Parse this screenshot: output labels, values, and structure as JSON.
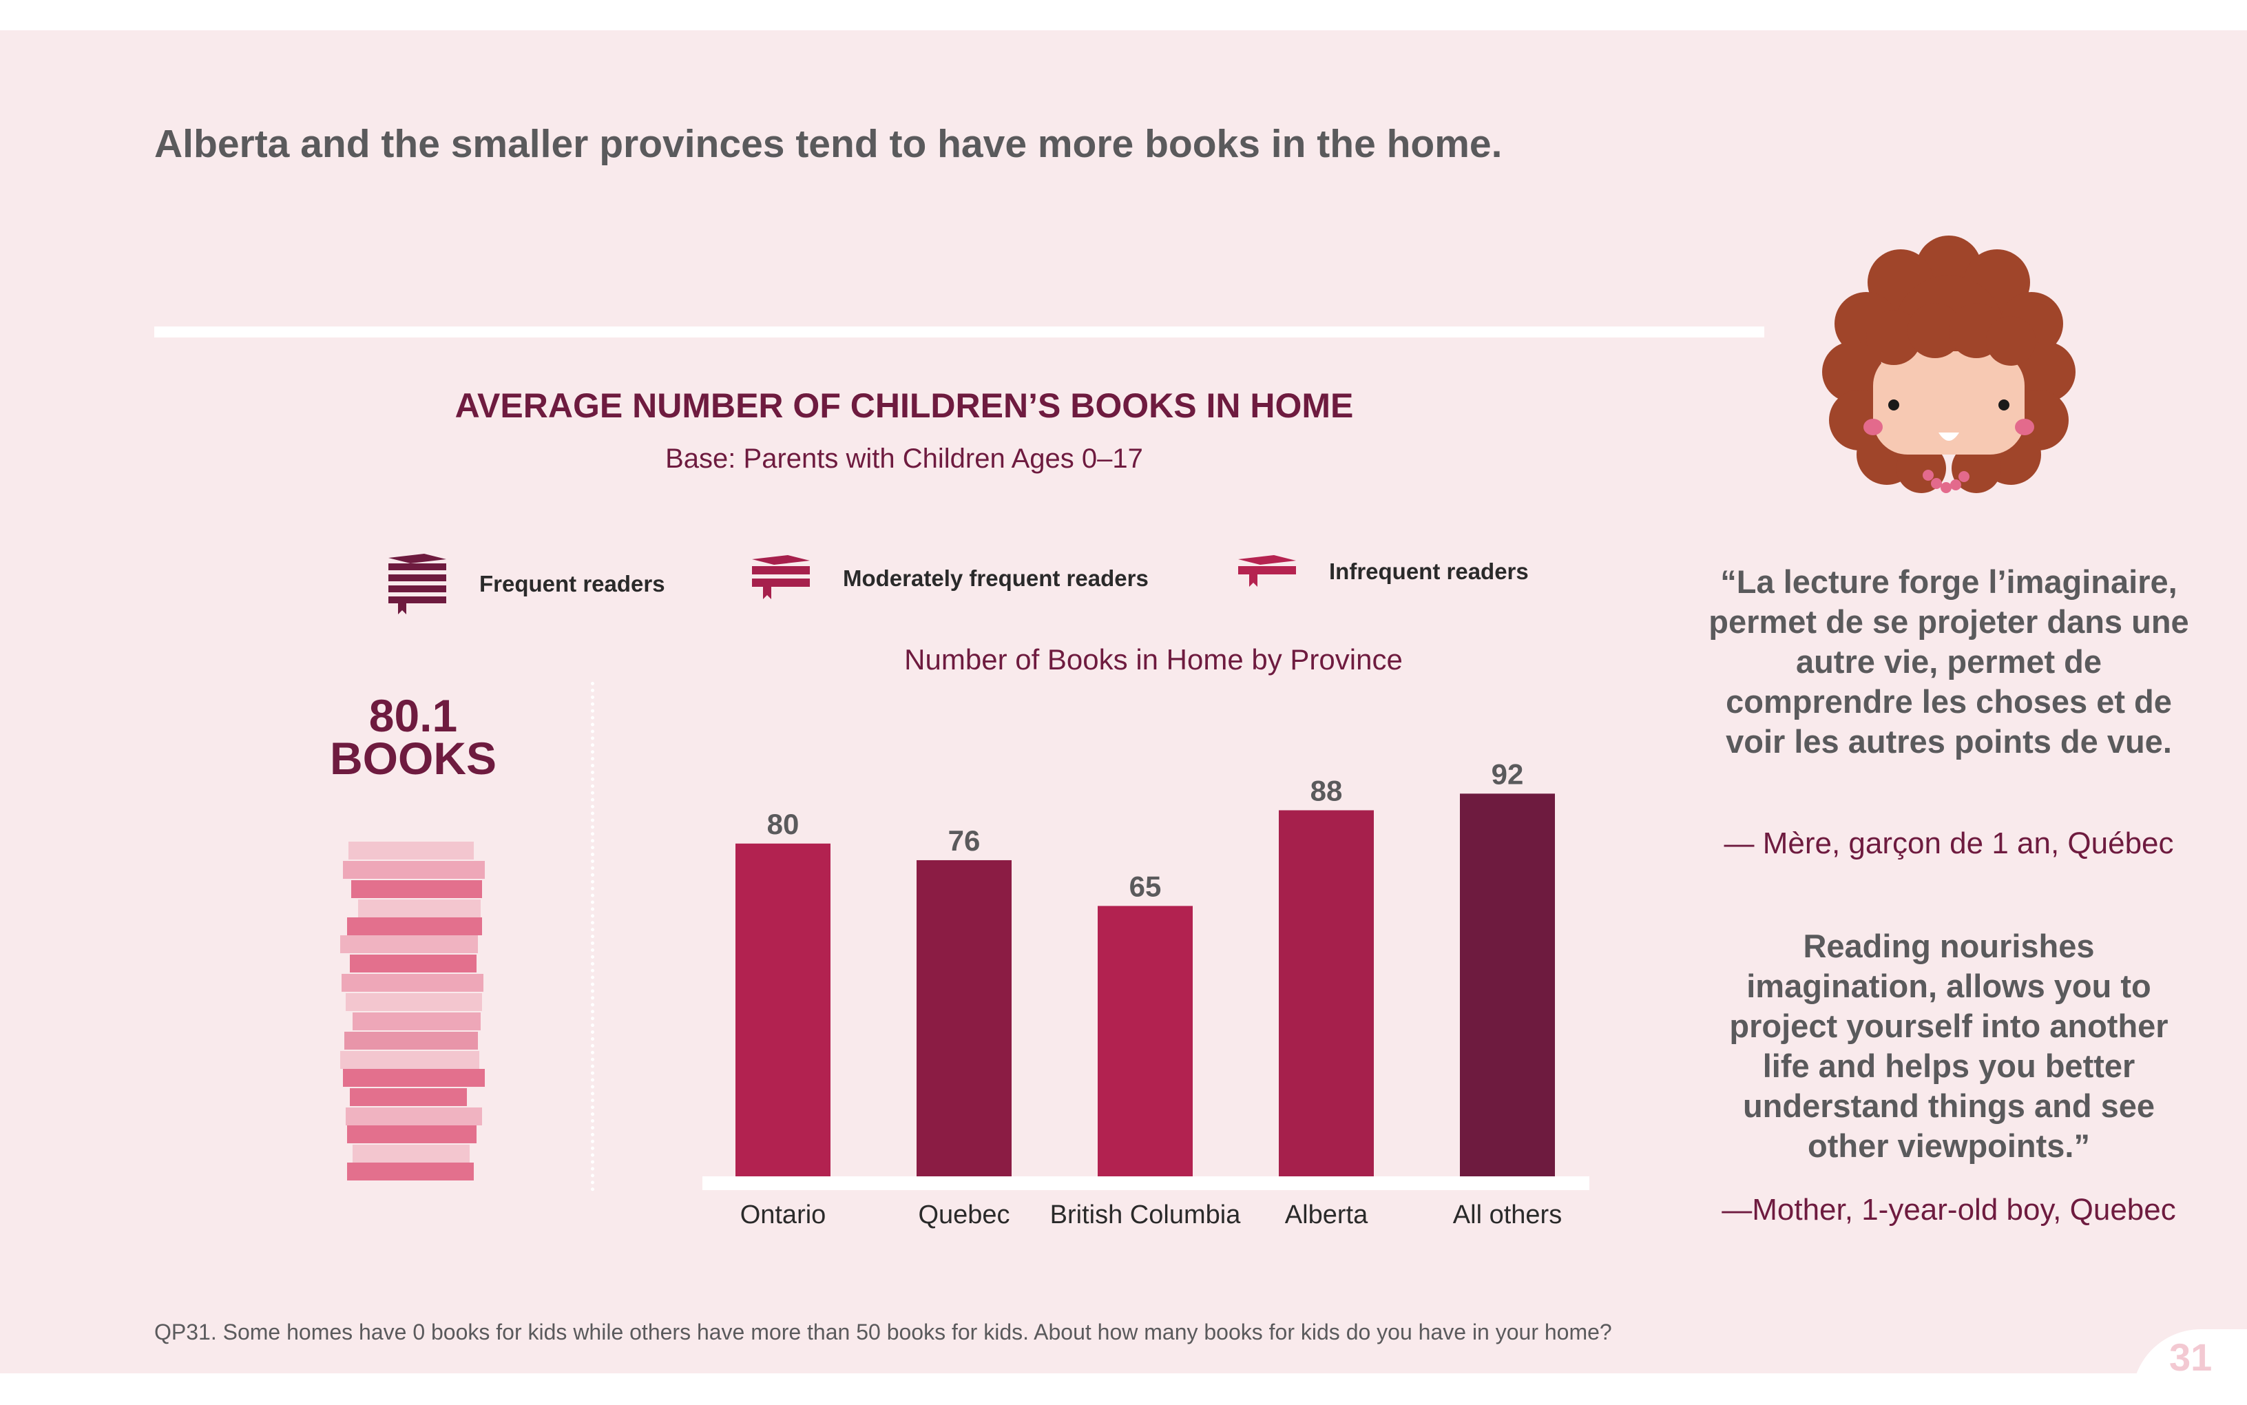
{
  "headline": "Alberta and the smaller provinces tend to have more books in the home.",
  "chart_title": "AVERAGE NUMBER OF CHILDREN’S BOOKS IN HOME",
  "chart_subtitle": "Base: Parents with Children Ages 0–17",
  "legend": [
    {
      "label": "Frequent readers",
      "icon": "book-stack-icon",
      "color": "#6e1b3f"
    },
    {
      "label": "Moderately frequent readers",
      "icon": "book-pair-icon",
      "color": "#a6204c"
    },
    {
      "label": "Infrequent readers",
      "icon": "book-single-icon",
      "color": "#b52350"
    }
  ],
  "overall": {
    "value": "80.1",
    "unit": "BOOKS"
  },
  "colors": {
    "background": "#f9eaec",
    "frequent": "#6e1b3f",
    "moderate": "#8b1c44",
    "infrequent": "#b22250",
    "text_dark": "#5a5a5c"
  },
  "chart_data": {
    "type": "bar",
    "title": "Number of Books in Home by Province",
    "categories": [
      "Ontario",
      "Quebec",
      "British Columbia",
      "Alberta",
      "All others"
    ],
    "values": [
      80,
      76,
      65,
      88,
      92
    ],
    "bar_colors": [
      "#b22250",
      "#8b1c44",
      "#b22250",
      "#a6204c",
      "#6e1b3f"
    ],
    "xlabel": "",
    "ylabel": "",
    "ylim": [
      0,
      100
    ],
    "grid": false
  },
  "quote": {
    "french": "“La lecture forge l’imaginaire, permet de se projeter dans une autre vie, permet de comprendre les choses et de voir les autres points de vue.",
    "french_attr": "— Mère, garçon de 1 an, Québec",
    "english": "Reading nourishes imagination, allows you to project yourself into another life and helps you better understand things and see other viewpoints.”",
    "english_attr": "—Mother, 1-year-old boy, Quebec"
  },
  "footnote": "QP31. Some homes have 0 books for kids while others have more than 50 books for kids. About how many books for kids do you have in your home?",
  "page_number": "31"
}
